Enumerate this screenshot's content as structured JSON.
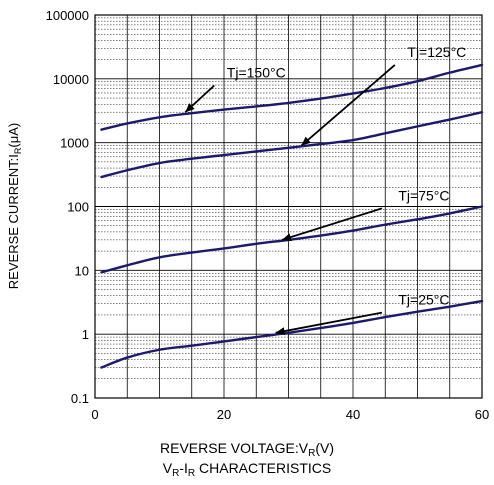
{
  "chart_data": {
    "type": "line",
    "xlabel": {
      "main": "REVERSE VOLTAGE:V",
      "sub": "R",
      "unit": "(V)"
    },
    "ylabel": {
      "main": "REVERSE CURRENT:I",
      "sub": "R",
      "unit": "(μA)"
    },
    "caption": {
      "a": "V",
      "a_sub": "R",
      "dash": "-I",
      "b_sub": "R",
      "rest": " CHARACTERISTICS"
    },
    "xlim": [
      0,
      60
    ],
    "ylim": [
      0.1,
      100000
    ],
    "yscale": "log",
    "grid": true,
    "x_ticks": [
      0,
      20,
      40,
      60
    ],
    "x_tick_labels": [
      "0",
      "20",
      "40",
      "60"
    ],
    "y_ticks": [
      0.1,
      1,
      10,
      100,
      1000,
      10000,
      100000
    ],
    "y_tick_labels": [
      "0.1",
      "1",
      "10",
      "100",
      "1000",
      "10000",
      "100000"
    ],
    "series": [
      {
        "name": "Tj=150°C",
        "x": [
          1,
          5,
          10,
          15,
          20,
          25,
          30,
          35,
          40,
          45,
          50,
          55,
          60
        ],
        "y": [
          1600,
          2000,
          2500,
          2900,
          3300,
          3700,
          4200,
          4900,
          5900,
          7200,
          9200,
          12500,
          16500
        ]
      },
      {
        "name": "Tj=125°C",
        "x": [
          1,
          5,
          10,
          15,
          20,
          25,
          30,
          35,
          40,
          45,
          50,
          55,
          60
        ],
        "y": [
          290,
          370,
          480,
          560,
          640,
          730,
          830,
          950,
          1100,
          1400,
          1800,
          2300,
          3000
        ]
      },
      {
        "name": "Tj=75°C",
        "x": [
          1,
          5,
          10,
          15,
          20,
          25,
          30,
          35,
          40,
          45,
          50,
          55,
          60
        ],
        "y": [
          9.3,
          12,
          16,
          19,
          22,
          26,
          30,
          35,
          42,
          52,
          63,
          78,
          100
        ]
      },
      {
        "name": "Tj=25°C",
        "x": [
          1,
          5,
          10,
          15,
          20,
          25,
          30,
          35,
          40,
          45,
          50,
          55,
          60
        ],
        "y": [
          0.3,
          0.43,
          0.57,
          0.66,
          0.77,
          0.9,
          1.05,
          1.25,
          1.5,
          1.85,
          2.25,
          2.7,
          3.3
        ]
      }
    ],
    "annotations": [
      {
        "text": "Tj=150°C",
        "label_x": 25,
        "label_y": 10500,
        "arrow_to_x": 14,
        "arrow_to_y": 3000
      },
      {
        "text": "Tj=125°C",
        "label_x": 53,
        "label_y": 22000,
        "arrow_to_x": 32,
        "arrow_to_y": 900
      },
      {
        "text": "Tj=75°C",
        "label_x": 51,
        "label_y": 125,
        "arrow_to_x": 29,
        "arrow_to_y": 30
      },
      {
        "text": "Tj=25°C",
        "label_x": 51,
        "label_y": 2.9,
        "arrow_to_x": 28,
        "arrow_to_y": 1.05
      }
    ]
  }
}
